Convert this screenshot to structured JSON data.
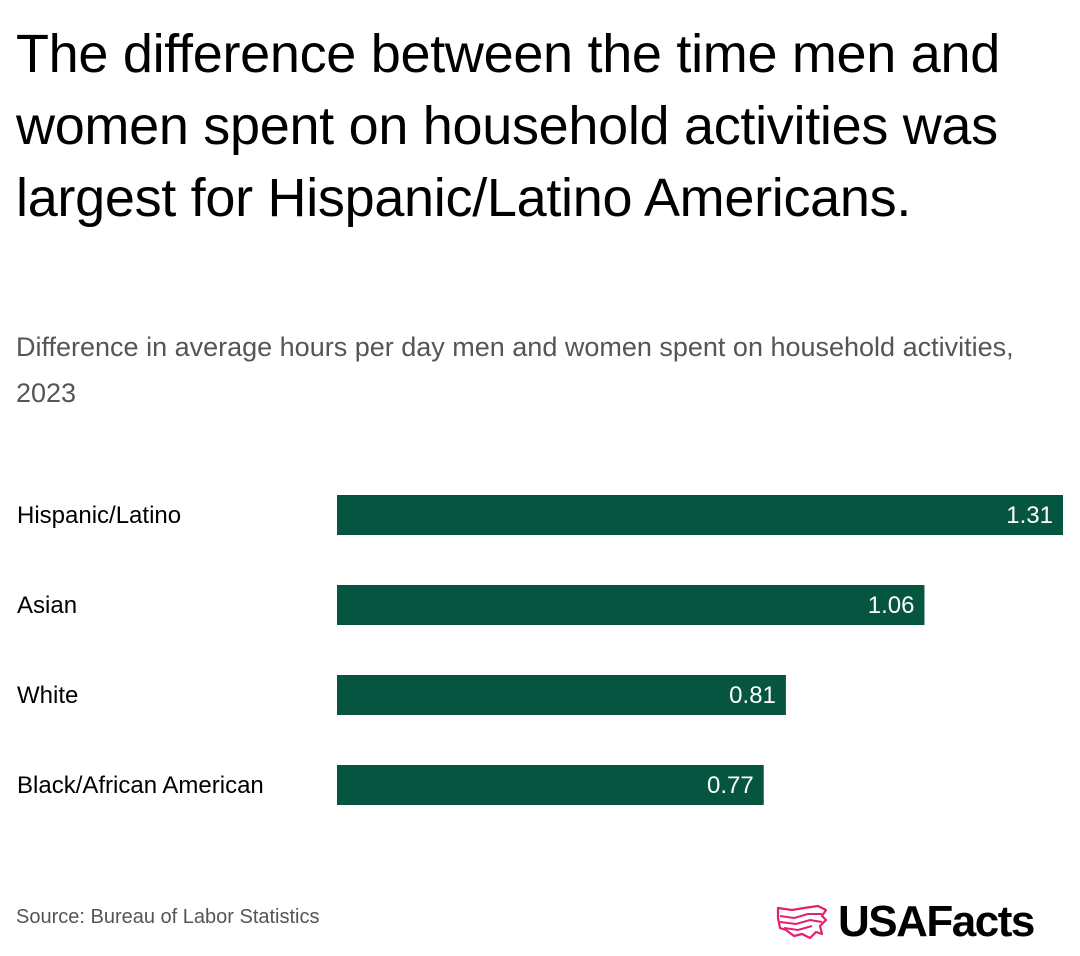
{
  "title": "The difference between the time men and women spent on household activities was largest for Hispanic/Latino Americans.",
  "subtitle": "Difference in average hours per day men and women spent on household activities, 2023",
  "source": "Source: Bureau of Labor Statistics",
  "logo": {
    "text": "USAFacts",
    "icon": "usa-map-icon"
  },
  "colors": {
    "bar": "#055541",
    "value_text": "#ffffff",
    "logo_accent": "#e3226d"
  },
  "chart_data": {
    "type": "bar",
    "orientation": "horizontal",
    "title": "The difference between the time men and women spent on household activities was largest for Hispanic/Latino Americans.",
    "subtitle": "Difference in average hours per day men and women spent on household activities, 2023",
    "categories": [
      "Hispanic/Latino",
      "Asian",
      "White",
      "Black/African American"
    ],
    "values": [
      1.31,
      1.06,
      0.81,
      0.77
    ],
    "value_labels": [
      "1.31",
      "1.06",
      "0.81",
      "0.77"
    ],
    "xlabel": "",
    "ylabel": "",
    "xlim": [
      0,
      1.31
    ],
    "grid": false,
    "legend": "none"
  }
}
